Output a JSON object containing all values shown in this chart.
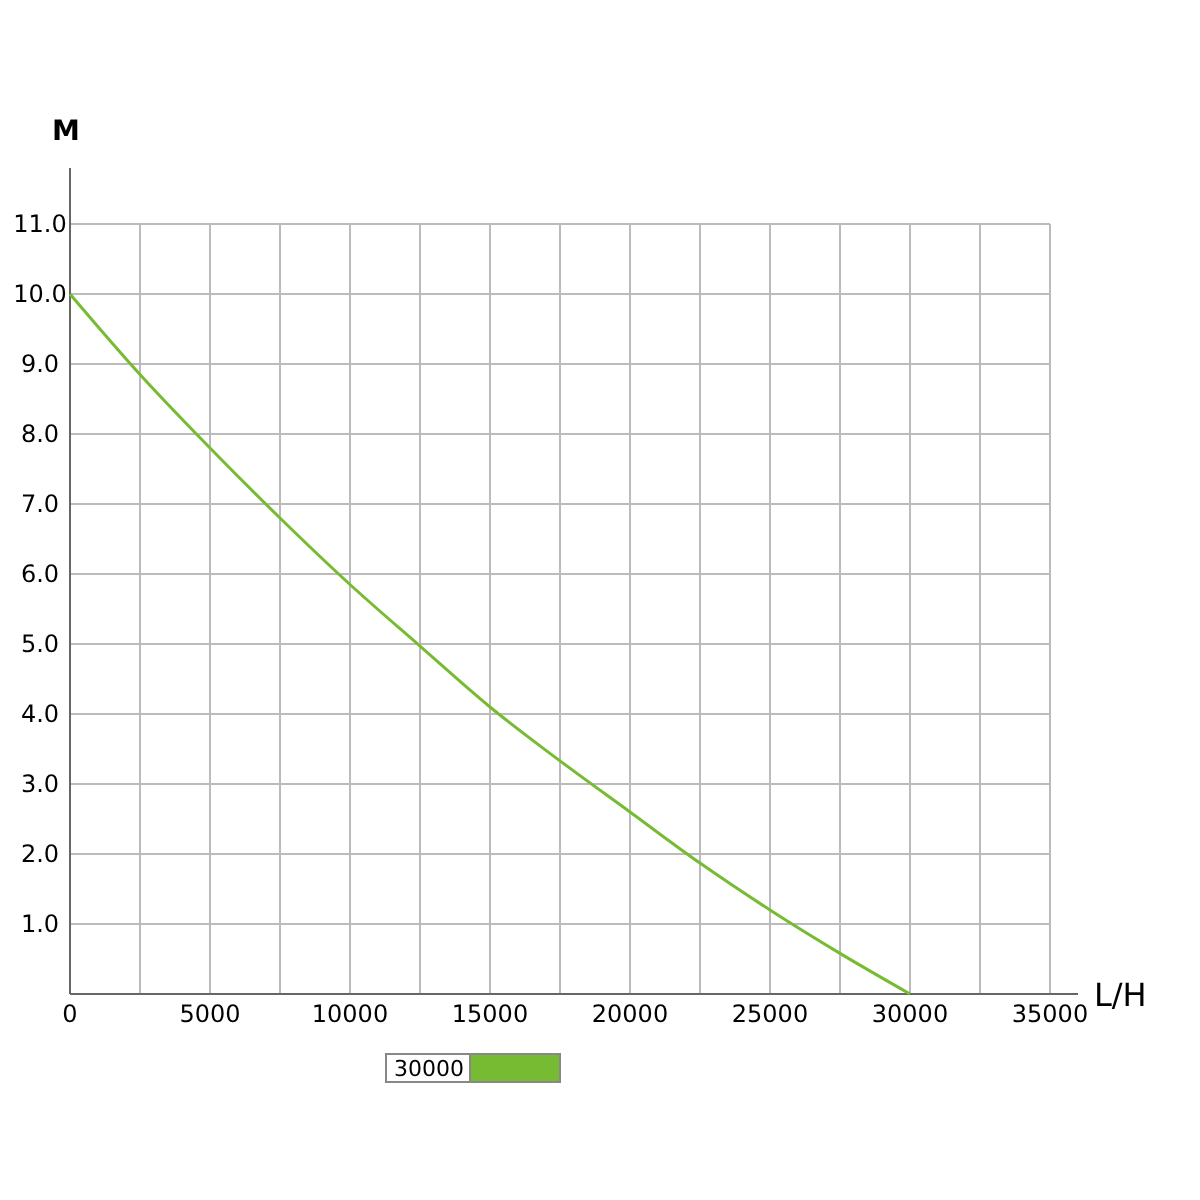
{
  "chart_data": {
    "type": "line",
    "xlabel": "L/H",
    "ylabel": "M",
    "x": [
      0,
      2500,
      5000,
      7500,
      10000,
      12500,
      15000,
      17500,
      20000,
      22500,
      25000,
      27500,
      30000
    ],
    "series": [
      {
        "name": "30000",
        "color": "#77bb33",
        "values": [
          10,
          8.85,
          7.8,
          6.8,
          5.85,
          4.97,
          4.1,
          3.33,
          2.6,
          1.87,
          1.2,
          0.58,
          0
        ]
      }
    ],
    "xlim": [
      0,
      36000
    ],
    "ylim": [
      0,
      11.8
    ],
    "xticks": [
      0,
      {
        "value": 2500,
        "label": null
      },
      5000,
      {
        "value": 7500,
        "label": null
      },
      10000,
      {
        "value": 12500,
        "label": null
      },
      15000,
      {
        "value": 17500,
        "label": null
      },
      20000,
      {
        "value": 22500,
        "label": null
      },
      25000,
      {
        "value": 27500,
        "label": null
      },
      30000,
      {
        "value": 32500,
        "label": null
      },
      35000
    ],
    "yticks": [
      {
        "value": 1,
        "label": "1.0"
      },
      {
        "value": 2,
        "label": "2.0"
      },
      {
        "value": 3,
        "label": "3.0"
      },
      {
        "value": 4,
        "label": "4.0"
      },
      {
        "value": 5,
        "label": "5.0"
      },
      {
        "value": 6,
        "label": "6.0"
      },
      {
        "value": 7,
        "label": "7.0"
      },
      {
        "value": 8,
        "label": "8.0"
      },
      {
        "value": 9,
        "label": "9.0"
      },
      {
        "value": 10,
        "label": "10.0"
      },
      {
        "value": 11,
        "label": "11.0"
      }
    ],
    "grid": true,
    "legend": "bottom",
    "marker": "none",
    "line_style": "solid"
  }
}
